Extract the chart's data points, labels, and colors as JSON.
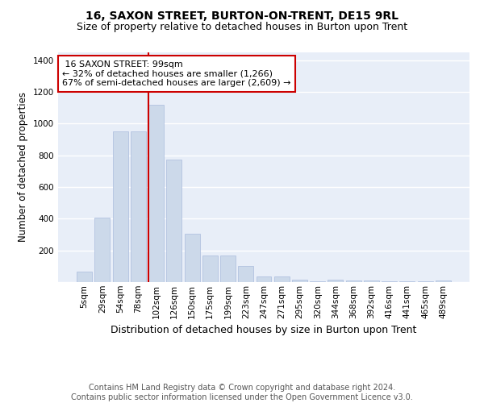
{
  "title": "16, SAXON STREET, BURTON-ON-TRENT, DE15 9RL",
  "subtitle": "Size of property relative to detached houses in Burton upon Trent",
  "xlabel": "Distribution of detached houses by size in Burton upon Trent",
  "ylabel": "Number of detached properties",
  "bar_color": "#ccd9ea",
  "bar_edge_color": "#aabbdd",
  "bg_color": "#e8eef8",
  "grid_color": "white",
  "categories": [
    "5sqm",
    "29sqm",
    "54sqm",
    "78sqm",
    "102sqm",
    "126sqm",
    "150sqm",
    "175sqm",
    "199sqm",
    "223sqm",
    "247sqm",
    "271sqm",
    "295sqm",
    "320sqm",
    "344sqm",
    "368sqm",
    "392sqm",
    "416sqm",
    "441sqm",
    "465sqm",
    "489sqm"
  ],
  "values": [
    65,
    405,
    950,
    950,
    1120,
    775,
    305,
    170,
    170,
    100,
    35,
    35,
    15,
    5,
    15,
    10,
    10,
    5,
    5,
    5,
    10
  ],
  "property_label": "16 SAXON STREET: 99sqm",
  "pct_smaller": "32%",
  "n_smaller": "1,266",
  "pct_larger_semi": "67%",
  "n_larger_semi": "2,609",
  "vline_x_index": 4,
  "vline_color": "#cc0000",
  "annotation_box_color": "#cc0000",
  "footnote": "Contains HM Land Registry data © Crown copyright and database right 2024.\nContains public sector information licensed under the Open Government Licence v3.0.",
  "ylim": [
    0,
    1450
  ],
  "yticks": [
    0,
    200,
    400,
    600,
    800,
    1000,
    1200,
    1400
  ],
  "title_fontsize": 10,
  "subtitle_fontsize": 9,
  "ylabel_fontsize": 8.5,
  "xlabel_fontsize": 9,
  "tick_fontsize": 7.5,
  "annotation_fontsize": 8,
  "footnote_fontsize": 7
}
